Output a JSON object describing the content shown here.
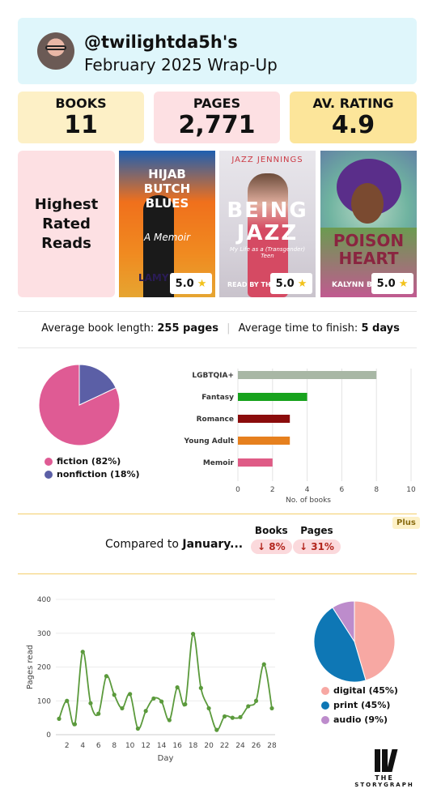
{
  "header": {
    "handle": "@twilightda5h's",
    "title": "February 2025 Wrap-Up"
  },
  "stats": [
    {
      "label": "BOOKS",
      "value": "11",
      "color": "#fdf0c6"
    },
    {
      "label": "PAGES",
      "value": "2,771",
      "color": "#fde0e3"
    },
    {
      "label": "AV. RATING",
      "value": "4.9",
      "color": "#fce59a"
    }
  ],
  "highest_rated": {
    "label": "Highest Rated Reads",
    "books": [
      {
        "cover_title": "HIJAB BUTCH BLUES",
        "cover_sub": "A Memoir",
        "cover_author": "LAMY",
        "rating": "5.0"
      },
      {
        "cover_title": "BEING JAZZ",
        "cover_top": "JAZZ JENNINGS",
        "cover_sub": "My Life as a (Transgender) Teen",
        "cover_author": "READ BY THE",
        "rating": "5.0"
      },
      {
        "cover_title": "POISON HEART",
        "cover_author": "KALYNN B",
        "rating": "5.0"
      }
    ]
  },
  "averages": {
    "length_label": "Average book length:",
    "length_value": "255 pages",
    "time_label": "Average time to finish:",
    "time_value": "5 days"
  },
  "comparison": {
    "label_prefix": "Compared to",
    "label_month": "January...",
    "books_header": "Books",
    "books_change": "↓ 8%",
    "pages_header": "Pages",
    "pages_change": "↓ 31%",
    "badge": "Plus"
  },
  "logo": {
    "line1": "THE",
    "line2": "STORYGRAPH"
  },
  "chart_data": [
    {
      "type": "pie",
      "labels": [
        "fiction (82%)",
        "nonfiction (18%)"
      ],
      "values": [
        82,
        18
      ],
      "colors": [
        "#df5b94",
        "#5b5fa6"
      ]
    },
    {
      "type": "bar",
      "orientation": "horizontal",
      "categories": [
        "LGBTQIA+",
        "Fantasy",
        "Romance",
        "Young Adult",
        "Memoir"
      ],
      "values": [
        8,
        4,
        3,
        3,
        2
      ],
      "colors": [
        "#a8b7a5",
        "#18a31e",
        "#8b0c0c",
        "#e6801e",
        "#df5b86"
      ],
      "xlabel": "No. of books",
      "xlim": [
        0,
        10
      ],
      "xticks": [
        0,
        2,
        4,
        6,
        8,
        10
      ]
    },
    {
      "type": "line",
      "x": [
        1,
        2,
        3,
        4,
        5,
        6,
        7,
        8,
        9,
        10,
        11,
        12,
        13,
        14,
        15,
        16,
        17,
        18,
        19,
        20,
        21,
        22,
        23,
        24,
        25,
        26,
        27,
        28
      ],
      "values": [
        47,
        100,
        31,
        245,
        93,
        62,
        173,
        118,
        78,
        120,
        18,
        70,
        107,
        98,
        43,
        140,
        90,
        298,
        138,
        78,
        14,
        54,
        50,
        52,
        84,
        100,
        208,
        78
      ],
      "color": "#5b9a3c",
      "xlabel": "Day",
      "ylabel": "Pages read",
      "ylim": [
        0,
        400
      ],
      "yticks": [
        0,
        100,
        200,
        300,
        400
      ],
      "xticks": [
        2,
        4,
        6,
        8,
        10,
        12,
        14,
        16,
        18,
        20,
        22,
        24,
        26,
        28
      ],
      "grid": true
    },
    {
      "type": "pie",
      "labels": [
        "digital (45%)",
        "print (45%)",
        "audio (9%)"
      ],
      "values": [
        45,
        45,
        9
      ],
      "colors": [
        "#f7a8a3",
        "#0e77b5",
        "#bd8ccc"
      ]
    }
  ]
}
